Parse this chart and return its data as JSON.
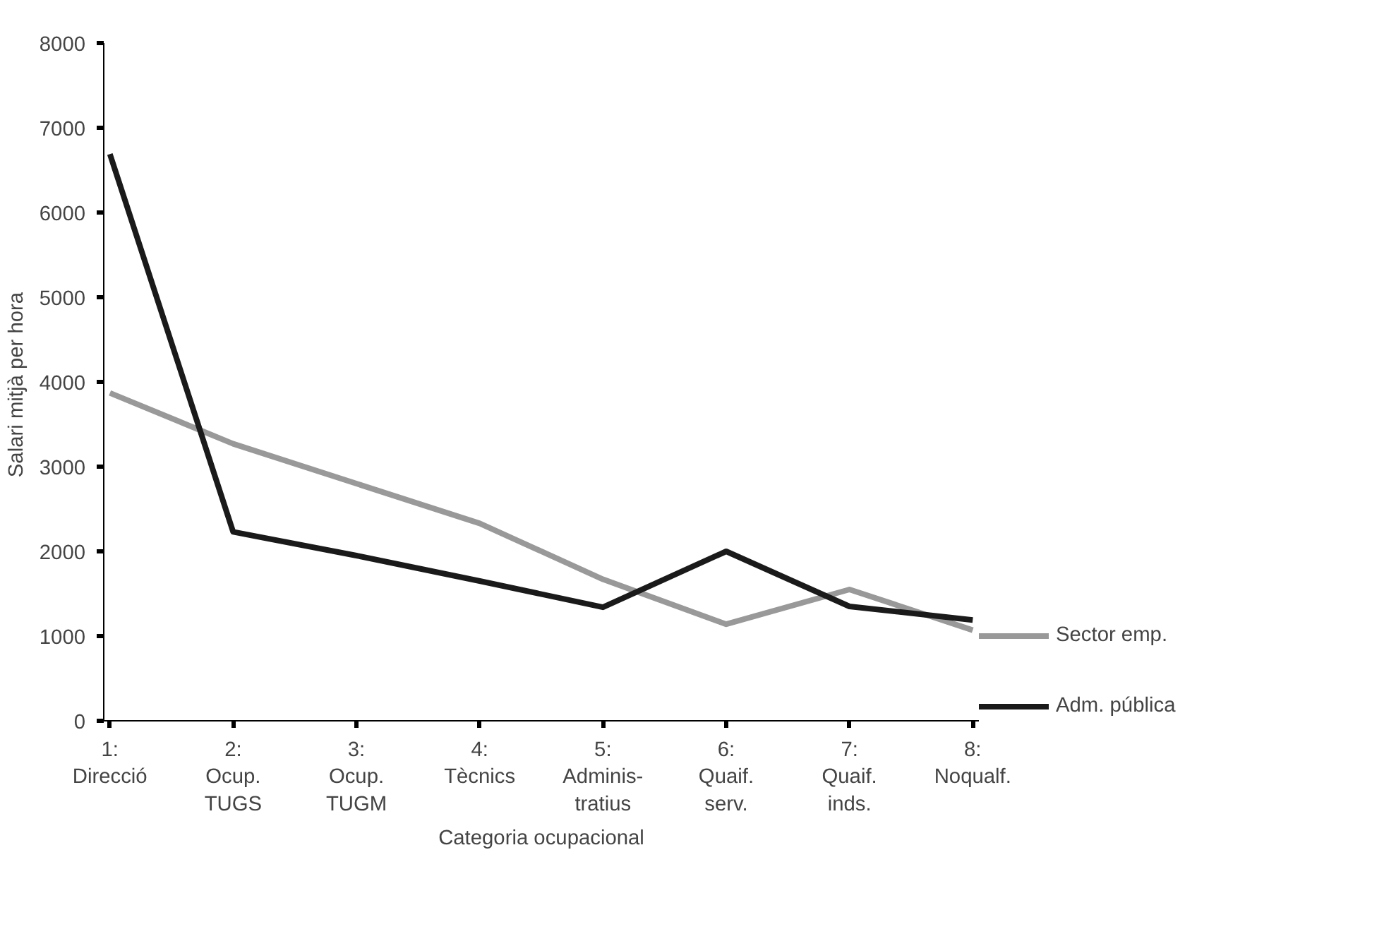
{
  "chart_data": {
    "type": "line",
    "xlabel": "Categoria ocupacional",
    "ylabel": "Salari  mitjà per hora",
    "categories": [
      "1:\nDirecció",
      "2:\nOcup.\nTUGS",
      "3:\nOcup.\nTUGM",
      "4:\nTècnics",
      "5:\nAdminis-\ntratius",
      "6:\nQuaif.\nserv.",
      "7:\nQuaif.\ninds.",
      "8:\nNoqualf."
    ],
    "series": [
      {
        "name": "Sector emp.",
        "color": "#999999",
        "values": [
          3870,
          3270,
          2800,
          2330,
          1670,
          1140,
          1550,
          1070
        ]
      },
      {
        "name": "Adm. pública",
        "color": "#1a1a1a",
        "values": [
          6690,
          2230,
          1950,
          1650,
          1340,
          2000,
          1350,
          1190
        ]
      }
    ],
    "ylim": [
      0,
      8000
    ],
    "yticks": [
      0,
      1000,
      2000,
      3000,
      4000,
      5000,
      6000,
      7000,
      8000
    ],
    "grid": false,
    "legend": "right",
    "marker": "none",
    "line_style": "solid"
  }
}
